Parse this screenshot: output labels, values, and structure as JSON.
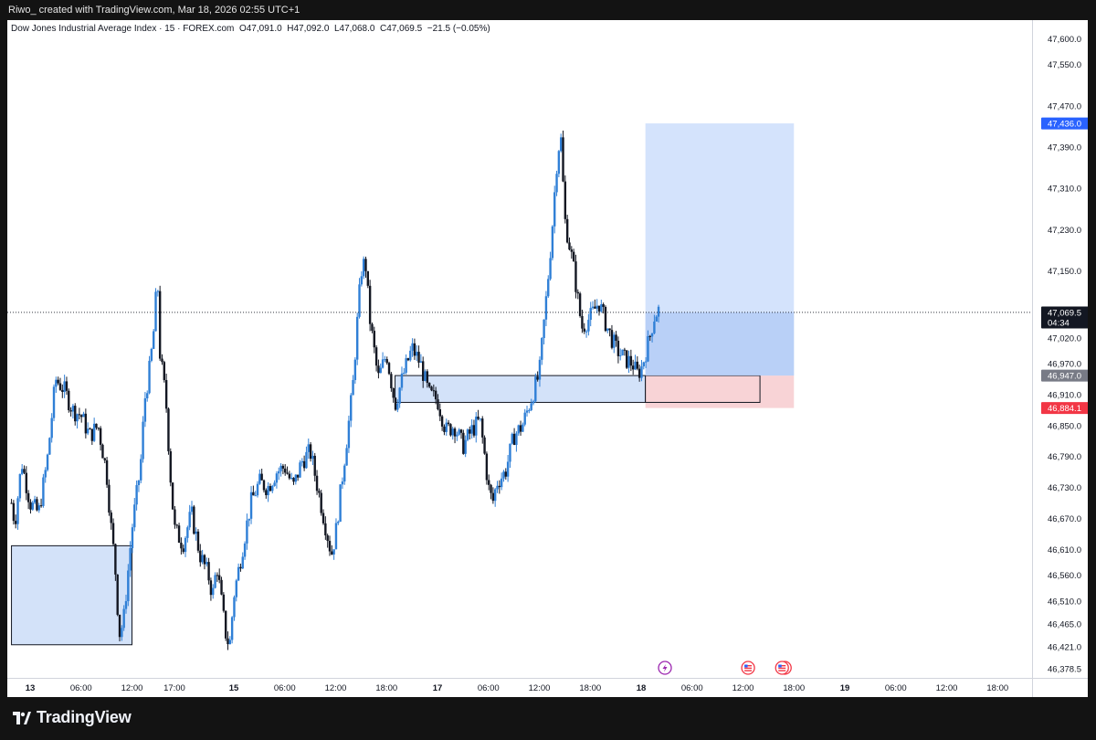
{
  "header": {
    "attribution": "Riwo_ created with TradingView.com, Mar 18, 2026 02:55 UTC+1"
  },
  "legend": {
    "symbol_name": "Dow Jones Industrial Average Index",
    "interval": "15",
    "source": "FOREX.com",
    "open": "O47,091.0",
    "high": "H47,092.0",
    "low": "L47,068.0",
    "close": "C47,069.5",
    "change": "−21.5 (−0.05%)"
  },
  "price_tags": {
    "target": "47,436.0",
    "current": "47,069.5",
    "countdown": "04:34",
    "entry": "46,947.0",
    "stop": "46,884.1"
  },
  "footer": {
    "brand": "TradingView"
  },
  "colors": {
    "background": "#131313",
    "chart_bg": "#ffffff",
    "bull_body": "#2f7fd6",
    "bear_body": "#131722",
    "zone_fill": "#d3e2f9",
    "target_zone": "#d4e3fc",
    "stop_zone": "#f8d3d6",
    "tag_blue": "#2962ff",
    "tag_gray": "#787b86",
    "tag_red": "#f23645"
  },
  "event_icons": [
    "flash-icon",
    "us-flag-icon",
    "us-flag-double-icon"
  ],
  "chart_data": {
    "type": "candlestick",
    "title": "Dow Jones Industrial Average Index · 15 · FOREX.com",
    "y_axis": {
      "range": [
        46355,
        47650
      ],
      "ticks": [
        "47,600.0",
        "47,550.0",
        "47,470.0",
        "47,390.0",
        "47,310.0",
        "47,230.0",
        "47,150.0",
        "47,070.0",
        "47,020.0",
        "46,970.0",
        "46,910.0",
        "46,850.0",
        "46,790.0",
        "46,730.0",
        "46,670.0",
        "46,610.0",
        "46,560.0",
        "46,510.0",
        "46,465.0",
        "46,421.0",
        "46,378.5"
      ],
      "tick_values": [
        47600,
        47550,
        47470,
        47390,
        47310,
        47230,
        47150,
        47070,
        47020,
        46970,
        46910,
        46850,
        46790,
        46730,
        46670,
        46610,
        46560,
        46510,
        46465,
        46421,
        46378.5
      ]
    },
    "x_axis": {
      "ticks": [
        "13",
        "06:00",
        "12:00",
        "17:00",
        "15",
        "06:00",
        "12:00",
        "18:00",
        "17",
        "06:00",
        "12:00",
        "18:00",
        "18",
        "06:00",
        "12:00",
        "18:00",
        "19",
        "06:00",
        "12:00",
        "18:00"
      ],
      "tick_hours": [
        0,
        6,
        12,
        17,
        24,
        30,
        36,
        42,
        48,
        54,
        60,
        66,
        72,
        78,
        84,
        90,
        96,
        102,
        108,
        114
      ],
      "bold_ticks": [
        "13",
        "15",
        "17",
        "18",
        "19"
      ]
    },
    "series_anchors_hours_price": [
      [
        -2.2,
        46700
      ],
      [
        -1.8,
        46660
      ],
      [
        -1,
        46780
      ],
      [
        0,
        46700
      ],
      [
        1,
        46680
      ],
      [
        2,
        46780
      ],
      [
        3,
        46940
      ],
      [
        4,
        46920
      ],
      [
        5,
        46880
      ],
      [
        6,
        46870
      ],
      [
        7,
        46830
      ],
      [
        8,
        46850
      ],
      [
        9,
        46760
      ],
      [
        9.5,
        46660
      ],
      [
        10,
        46580
      ],
      [
        10.5,
        46445
      ],
      [
        11,
        46470
      ],
      [
        12,
        46650
      ],
      [
        13,
        46770
      ],
      [
        13.5,
        46900
      ],
      [
        14,
        46950
      ],
      [
        14.5,
        47020
      ],
      [
        15,
        47140
      ],
      [
        15.3,
        46990
      ],
      [
        16,
        46900
      ],
      [
        16.5,
        46760
      ],
      [
        17,
        46650
      ],
      [
        18,
        46620
      ],
      [
        19,
        46680
      ],
      [
        20,
        46600
      ],
      [
        21,
        46560
      ],
      [
        21.5,
        46520
      ],
      [
        22,
        46580
      ],
      [
        23,
        46450
      ],
      [
        23.5,
        46420
      ],
      [
        24,
        46520
      ],
      [
        25,
        46610
      ],
      [
        26,
        46700
      ],
      [
        27,
        46740
      ],
      [
        28,
        46730
      ],
      [
        29,
        46760
      ],
      [
        30,
        46770
      ],
      [
        31,
        46730
      ],
      [
        32,
        46780
      ],
      [
        33,
        46800
      ],
      [
        34,
        46720
      ],
      [
        35,
        46640
      ],
      [
        35.5,
        46600
      ],
      [
        36,
        46640
      ],
      [
        37,
        46780
      ],
      [
        38,
        46920
      ],
      [
        38.5,
        47040
      ],
      [
        39,
        47150
      ],
      [
        39.5,
        47170
      ],
      [
        40,
        47060
      ],
      [
        41,
        46940
      ],
      [
        42,
        46990
      ],
      [
        43,
        46890
      ],
      [
        44,
        46950
      ],
      [
        45,
        47000
      ],
      [
        46,
        46970
      ],
      [
        47,
        46910
      ],
      [
        48,
        46900
      ],
      [
        49,
        46840
      ],
      [
        50,
        46850
      ],
      [
        51,
        46810
      ],
      [
        52,
        46840
      ],
      [
        53,
        46860
      ],
      [
        53.5,
        46800
      ],
      [
        54,
        46730
      ],
      [
        54.5,
        46700
      ],
      [
        55,
        46740
      ],
      [
        56,
        46760
      ],
      [
        57,
        46830
      ],
      [
        58,
        46850
      ],
      [
        59,
        46900
      ],
      [
        60,
        46950
      ],
      [
        60.5,
        47040
      ],
      [
        61,
        47130
      ],
      [
        61.5,
        47230
      ],
      [
        62,
        47350
      ],
      [
        62.5,
        47420
      ],
      [
        63,
        47250
      ],
      [
        64,
        47160
      ],
      [
        65,
        47040
      ],
      [
        66,
        47060
      ],
      [
        67,
        47090
      ],
      [
        68,
        47040
      ],
      [
        69,
        47000
      ],
      [
        70,
        46980
      ],
      [
        71,
        46970
      ],
      [
        71.5,
        46950
      ],
      [
        72,
        46960
      ],
      [
        73,
        47020
      ],
      [
        73.5,
        47060
      ],
      [
        74,
        47075
      ],
      [
        74.2,
        47069.5
      ]
    ],
    "zones": [
      {
        "name": "demand-zone-left",
        "x_hours": [
          -2.2,
          12
        ],
        "price": [
          46617,
          46425
        ]
      },
      {
        "name": "demand-zone-mid",
        "x_hours": [
          43,
          72.5
        ],
        "price": [
          46947,
          46895
        ]
      },
      {
        "name": "target-zone",
        "x_hours": [
          72.5,
          90
        ],
        "price": [
          47436,
          46947
        ]
      },
      {
        "name": "stop-zone",
        "x_hours": [
          72.5,
          90
        ],
        "price": [
          46947,
          46884.1
        ]
      },
      {
        "name": "stop-zone-outline",
        "x_hours": [
          72.5,
          86
        ],
        "price": [
          46947,
          46895
        ]
      },
      {
        "name": "profit-fill",
        "x_hours": [
          72.5,
          90
        ],
        "price": [
          47069.5,
          46947
        ]
      }
    ],
    "current_price": 47069.5,
    "ylabel": "",
    "xlabel": ""
  }
}
